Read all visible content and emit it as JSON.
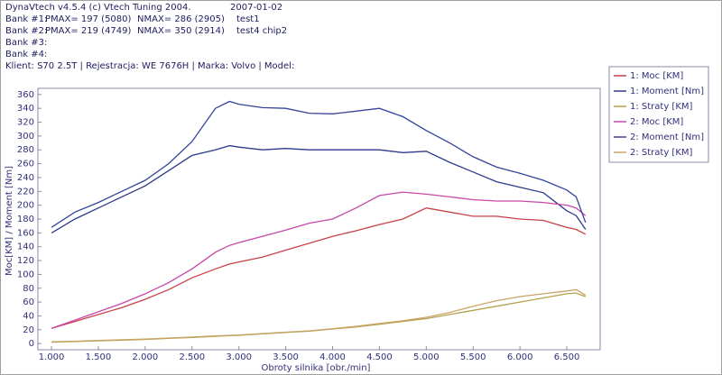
{
  "header": {
    "app": "DynaVtech v4.5.4 (c) Vtech Tuning 2004.",
    "date": "2007-01-02",
    "banks": [
      [
        "Bank #1:",
        "PMAX= 197 (5080)",
        "NMAX= 286 (2905)",
        "test1"
      ],
      [
        "Bank #2:",
        "PMAX= 219 (4749)",
        "NMAX= 350 (2914)",
        "test4 chip2"
      ],
      [
        "Bank #3:"
      ],
      [
        "Bank #4:"
      ]
    ],
    "client": "Klient: S70 2.5T | Rejestracja: WE 7676H | Marka: Volvo | Model:"
  },
  "chart_data": {
    "type": "line",
    "x_label": "Obroty silnika [obr./min]",
    "y_label": "Moc[KM] / Moment [Nm]",
    "x": [
      1000,
      1250,
      1500,
      1750,
      2000,
      2250,
      2500,
      2750,
      2900,
      3000,
      3250,
      3500,
      3750,
      4000,
      4250,
      4500,
      4750,
      5000,
      5250,
      5500,
      5750,
      6000,
      6250,
      6500,
      6600,
      6700
    ],
    "series": [
      {
        "name": "1: Moc [KM]",
        "color": "#c8404a",
        "values": [
          22,
          32,
          42,
          52,
          64,
          78,
          95,
          108,
          115,
          118,
          125,
          135,
          145,
          155,
          163,
          172,
          180,
          196,
          190,
          184,
          184,
          180,
          178,
          168,
          165,
          158
        ]
      },
      {
        "name": "1: Moment [Nm]",
        "color": "#2c3a8c",
        "values": [
          160,
          180,
          196,
          212,
          228,
          250,
          272,
          280,
          286,
          284,
          280,
          282,
          280,
          280,
          280,
          280,
          276,
          278,
          262,
          248,
          234,
          226,
          218,
          192,
          185,
          165
        ]
      },
      {
        "name": "1: Straty [KM]",
        "color": "#b4a24a",
        "values": [
          2,
          3,
          4,
          5,
          6,
          7.5,
          9,
          10.5,
          11.5,
          12,
          14,
          16,
          18,
          21,
          24,
          28,
          32,
          36,
          42,
          48,
          54,
          60,
          66,
          72,
          73,
          68
        ]
      },
      {
        "name": "2: Moc [KM]",
        "color": "#c848a8",
        "values": [
          22,
          34,
          46,
          58,
          72,
          88,
          108,
          132,
          142,
          146,
          155,
          164,
          174,
          180,
          196,
          214,
          219,
          216,
          212,
          208,
          206,
          206,
          204,
          200,
          196,
          185
        ]
      },
      {
        "name": "2: Moment [Nm]",
        "color": "#34449c",
        "values": [
          168,
          190,
          204,
          220,
          236,
          260,
          292,
          340,
          350,
          346,
          341,
          340,
          333,
          332,
          336,
          340,
          328,
          308,
          290,
          270,
          255,
          246,
          236,
          222,
          212,
          175
        ]
      },
      {
        "name": "2: Straty [KM]",
        "color": "#c8a468",
        "values": [
          2.5,
          3.5,
          4.5,
          5.5,
          6.5,
          8,
          9.5,
          11,
          12,
          12.5,
          14.5,
          16.5,
          18.5,
          21.5,
          25,
          29,
          33,
          38,
          45,
          54,
          62,
          68,
          72,
          76,
          78,
          70
        ]
      }
    ],
    "xlim": [
      855,
      6856
    ],
    "ylim": [
      -5,
      365
    ],
    "xticks": [
      {
        "value": 1000,
        "label": "1.000"
      },
      {
        "value": 1500,
        "label": "1.500"
      },
      {
        "value": 2000,
        "label": "2.000"
      },
      {
        "value": 2500,
        "label": "2.500"
      },
      {
        "value": 3000,
        "label": "3.000"
      },
      {
        "value": 3500,
        "label": "3.500"
      },
      {
        "value": 4000,
        "label": "4.000"
      },
      {
        "value": 4500,
        "label": "4.500"
      },
      {
        "value": 5000,
        "label": "5.000"
      },
      {
        "value": 5500,
        "label": "5.500"
      },
      {
        "value": 6000,
        "label": "6.000"
      },
      {
        "value": 6500,
        "label": "6.500"
      }
    ],
    "yticks": [
      0,
      20,
      40,
      60,
      80,
      100,
      120,
      140,
      160,
      180,
      200,
      220,
      240,
      260,
      280,
      300,
      320,
      340,
      360
    ],
    "grid": false
  }
}
